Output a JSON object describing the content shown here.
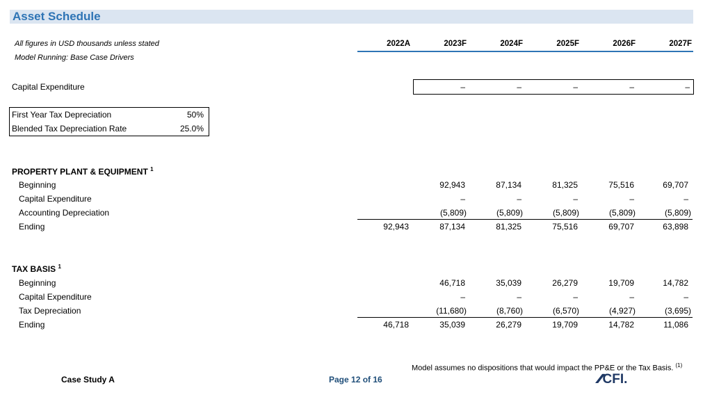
{
  "title": "Asset Schedule",
  "notes": {
    "units": "All figures in USD thousands unless stated",
    "model": "Model Running: Base Case Drivers"
  },
  "years": [
    "2022A",
    "2023F",
    "2024F",
    "2025F",
    "2026F",
    "2027F"
  ],
  "capex": {
    "label": "Capital Expenditure",
    "values": [
      "–",
      "–",
      "–",
      "–",
      "–"
    ]
  },
  "tax_inputs": {
    "first_year_label": "First Year Tax Depreciation",
    "first_year_value": "50%",
    "blended_label": "Blended Tax Depreciation Rate",
    "blended_value": "25.0%"
  },
  "ppe": {
    "heading": "PROPERTY PLANT & EQUIPMENT",
    "footnote": "1",
    "rows": [
      {
        "label": "Beginning",
        "values": [
          "",
          "92,943",
          "87,134",
          "81,325",
          "75,516",
          "69,707"
        ]
      },
      {
        "label": "Capital Expenditure",
        "values": [
          "",
          "–",
          "–",
          "–",
          "–",
          "–"
        ]
      },
      {
        "label": "Accounting Depreciation",
        "values": [
          "",
          "(5,809)",
          "(5,809)",
          "(5,809)",
          "(5,809)",
          "(5,809)"
        ]
      },
      {
        "label": "Ending",
        "values": [
          "92,943",
          "87,134",
          "81,325",
          "75,516",
          "69,707",
          "63,898"
        ]
      }
    ]
  },
  "tax": {
    "heading": "TAX BASIS",
    "footnote": "1",
    "rows": [
      {
        "label": "Beginning",
        "values": [
          "",
          "46,718",
          "35,039",
          "26,279",
          "19,709",
          "14,782"
        ]
      },
      {
        "label": "Capital Expenditure",
        "values": [
          "",
          "–",
          "–",
          "–",
          "–",
          "–"
        ]
      },
      {
        "label": "Tax Depreciation",
        "values": [
          "",
          "(11,680)",
          "(8,760)",
          "(6,570)",
          "(4,927)",
          "(3,695)"
        ]
      },
      {
        "label": "Ending",
        "values": [
          "46,718",
          "35,039",
          "26,279",
          "19,709",
          "14,782",
          "11,086"
        ]
      }
    ]
  },
  "footer": {
    "note": "Model assumes no dispositions that would impact the PP&E or the Tax Basis.",
    "note_marker": "(1)",
    "case": "Case Study A",
    "page": "Page 12 of 16",
    "logo": "CFI."
  }
}
